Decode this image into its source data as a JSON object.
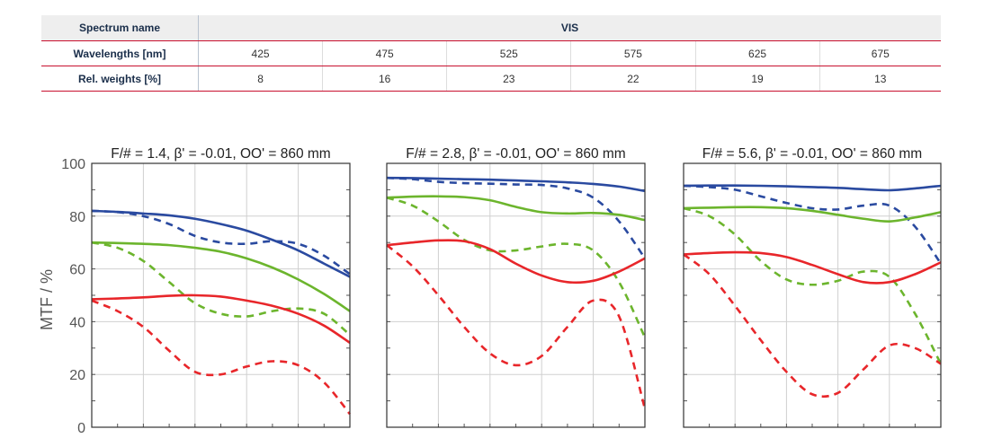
{
  "table": {
    "spectrum_label": "Spectrum name",
    "spectrum_value": "VIS",
    "wavelength_label": "Wavelengths [nm]",
    "weights_label": "Rel. weights [%]",
    "wavelengths": [
      "425",
      "475",
      "525",
      "575",
      "625",
      "675"
    ],
    "weights": [
      "8",
      "16",
      "23",
      "22",
      "19",
      "13"
    ]
  },
  "ylabel": "MTF / %",
  "yticks": [
    "0",
    "20",
    "40",
    "60",
    "80",
    "100"
  ],
  "chart_data": [
    {
      "type": "line",
      "title": "F/# = 1.4, β' = -0.01, OO' = 860 mm",
      "ylim": [
        0,
        100
      ],
      "grid": true,
      "series": [
        {
          "color": "#2a4aa0",
          "dash": false,
          "x": [
            0,
            0.1,
            0.2,
            0.3,
            0.4,
            0.5,
            0.6,
            0.7,
            0.8,
            0.9,
            1.0
          ],
          "y": [
            82,
            81.6,
            81,
            80.3,
            79,
            77,
            74.5,
            71,
            67,
            62,
            57
          ]
        },
        {
          "color": "#2a4aa0",
          "dash": true,
          "x": [
            0,
            0.1,
            0.2,
            0.3,
            0.4,
            0.5,
            0.6,
            0.7,
            0.8,
            0.9,
            1.0
          ],
          "y": [
            82,
            81.5,
            80,
            77,
            72.5,
            70,
            69.5,
            70.5,
            69.5,
            65,
            58
          ]
        },
        {
          "color": "#6cb52d",
          "dash": false,
          "x": [
            0,
            0.1,
            0.2,
            0.3,
            0.4,
            0.5,
            0.6,
            0.7,
            0.8,
            0.9,
            1.0
          ],
          "y": [
            70,
            69.8,
            69.5,
            69,
            68,
            66.5,
            64,
            60.5,
            56,
            50.5,
            44
          ]
        },
        {
          "color": "#6cb52d",
          "dash": true,
          "x": [
            0,
            0.1,
            0.2,
            0.3,
            0.4,
            0.5,
            0.6,
            0.7,
            0.8,
            0.9,
            1.0
          ],
          "y": [
            70,
            68,
            63,
            55,
            47,
            43,
            42,
            44,
            45,
            43,
            35
          ]
        },
        {
          "color": "#e8262a",
          "dash": false,
          "x": [
            0,
            0.1,
            0.2,
            0.3,
            0.4,
            0.5,
            0.6,
            0.7,
            0.8,
            0.9,
            1.0
          ],
          "y": [
            48.5,
            48.8,
            49.2,
            49.8,
            50,
            49.5,
            48,
            46,
            43,
            38.5,
            32
          ]
        },
        {
          "color": "#e8262a",
          "dash": true,
          "x": [
            0,
            0.1,
            0.2,
            0.3,
            0.4,
            0.5,
            0.6,
            0.7,
            0.8,
            0.9,
            1.0
          ],
          "y": [
            48,
            44,
            38,
            29,
            21,
            20,
            23,
            25,
            23.5,
            17,
            5
          ]
        }
      ]
    },
    {
      "type": "line",
      "title": "F/# = 2.8, β' = -0.01, OO' = 860 mm",
      "ylim": [
        0,
        100
      ],
      "grid": true,
      "series": [
        {
          "color": "#2a4aa0",
          "dash": false,
          "x": [
            0,
            0.1,
            0.2,
            0.3,
            0.4,
            0.5,
            0.6,
            0.7,
            0.8,
            0.9,
            1.0
          ],
          "y": [
            94.5,
            94.4,
            94.2,
            94,
            93.8,
            93.5,
            93.2,
            92.8,
            92.2,
            91.2,
            89.5
          ]
        },
        {
          "color": "#2a4aa0",
          "dash": true,
          "x": [
            0,
            0.1,
            0.2,
            0.3,
            0.4,
            0.5,
            0.6,
            0.7,
            0.8,
            0.9,
            1.0
          ],
          "y": [
            94.5,
            94,
            93,
            92.5,
            92.3,
            92,
            91.8,
            90.5,
            87,
            78,
            64
          ]
        },
        {
          "color": "#6cb52d",
          "dash": false,
          "x": [
            0,
            0.1,
            0.2,
            0.3,
            0.4,
            0.5,
            0.6,
            0.7,
            0.8,
            0.9,
            1.0
          ],
          "y": [
            87,
            87.4,
            87.5,
            87.2,
            86,
            83.5,
            81.5,
            81,
            81.2,
            80.5,
            78.5
          ]
        },
        {
          "color": "#6cb52d",
          "dash": true,
          "x": [
            0,
            0.1,
            0.2,
            0.3,
            0.4,
            0.5,
            0.6,
            0.7,
            0.8,
            0.9,
            1.0
          ],
          "y": [
            87,
            84,
            78,
            71,
            67,
            67,
            68.5,
            69.5,
            67,
            55,
            34
          ]
        },
        {
          "color": "#e8262a",
          "dash": false,
          "x": [
            0,
            0.1,
            0.2,
            0.3,
            0.4,
            0.5,
            0.6,
            0.7,
            0.8,
            0.9,
            1.0
          ],
          "y": [
            69,
            70,
            70.8,
            70.5,
            67.5,
            62,
            57.5,
            55,
            55.5,
            59,
            64
          ]
        },
        {
          "color": "#e8262a",
          "dash": true,
          "x": [
            0,
            0.1,
            0.2,
            0.3,
            0.4,
            0.5,
            0.6,
            0.7,
            0.8,
            0.9,
            1.0
          ],
          "y": [
            69,
            61,
            50,
            38,
            28,
            23.5,
            27,
            38,
            48,
            42,
            7
          ]
        }
      ]
    },
    {
      "type": "line",
      "title": "F/# = 5.6, β' = -0.01, OO' = 860 mm",
      "ylim": [
        0,
        100
      ],
      "grid": true,
      "series": [
        {
          "color": "#2a4aa0",
          "dash": false,
          "x": [
            0,
            0.1,
            0.2,
            0.3,
            0.4,
            0.5,
            0.6,
            0.7,
            0.8,
            0.9,
            1.0
          ],
          "y": [
            91.5,
            91.6,
            91.6,
            91.5,
            91.3,
            91,
            90.7,
            90.2,
            89.8,
            90.5,
            91.5
          ]
        },
        {
          "color": "#2a4aa0",
          "dash": true,
          "x": [
            0,
            0.1,
            0.2,
            0.3,
            0.4,
            0.5,
            0.6,
            0.7,
            0.8,
            0.9,
            1.0
          ],
          "y": [
            91.5,
            91,
            90,
            87.5,
            85,
            83,
            82.5,
            84,
            84,
            76,
            62
          ]
        },
        {
          "color": "#6cb52d",
          "dash": false,
          "x": [
            0,
            0.1,
            0.2,
            0.3,
            0.4,
            0.5,
            0.6,
            0.7,
            0.8,
            0.9,
            1.0
          ],
          "y": [
            83,
            83.2,
            83.4,
            83.4,
            83,
            82,
            80.5,
            79,
            78,
            79.5,
            81.5
          ]
        },
        {
          "color": "#6cb52d",
          "dash": true,
          "x": [
            0,
            0.1,
            0.2,
            0.3,
            0.4,
            0.5,
            0.6,
            0.7,
            0.8,
            0.9,
            1.0
          ],
          "y": [
            83,
            80,
            73,
            63,
            56,
            54,
            55.5,
            59,
            57,
            43,
            24
          ]
        },
        {
          "color": "#e8262a",
          "dash": false,
          "x": [
            0,
            0.1,
            0.2,
            0.3,
            0.4,
            0.5,
            0.6,
            0.7,
            0.8,
            0.9,
            1.0
          ],
          "y": [
            65.5,
            66,
            66.3,
            66,
            64.5,
            61.5,
            58,
            55,
            55,
            58,
            62.5
          ]
        },
        {
          "color": "#e8262a",
          "dash": true,
          "x": [
            0,
            0.1,
            0.2,
            0.3,
            0.4,
            0.5,
            0.6,
            0.7,
            0.8,
            0.9,
            1.0
          ],
          "y": [
            65.5,
            58,
            46,
            33,
            21,
            12.5,
            13,
            22,
            31,
            30,
            24
          ]
        }
      ]
    }
  ]
}
